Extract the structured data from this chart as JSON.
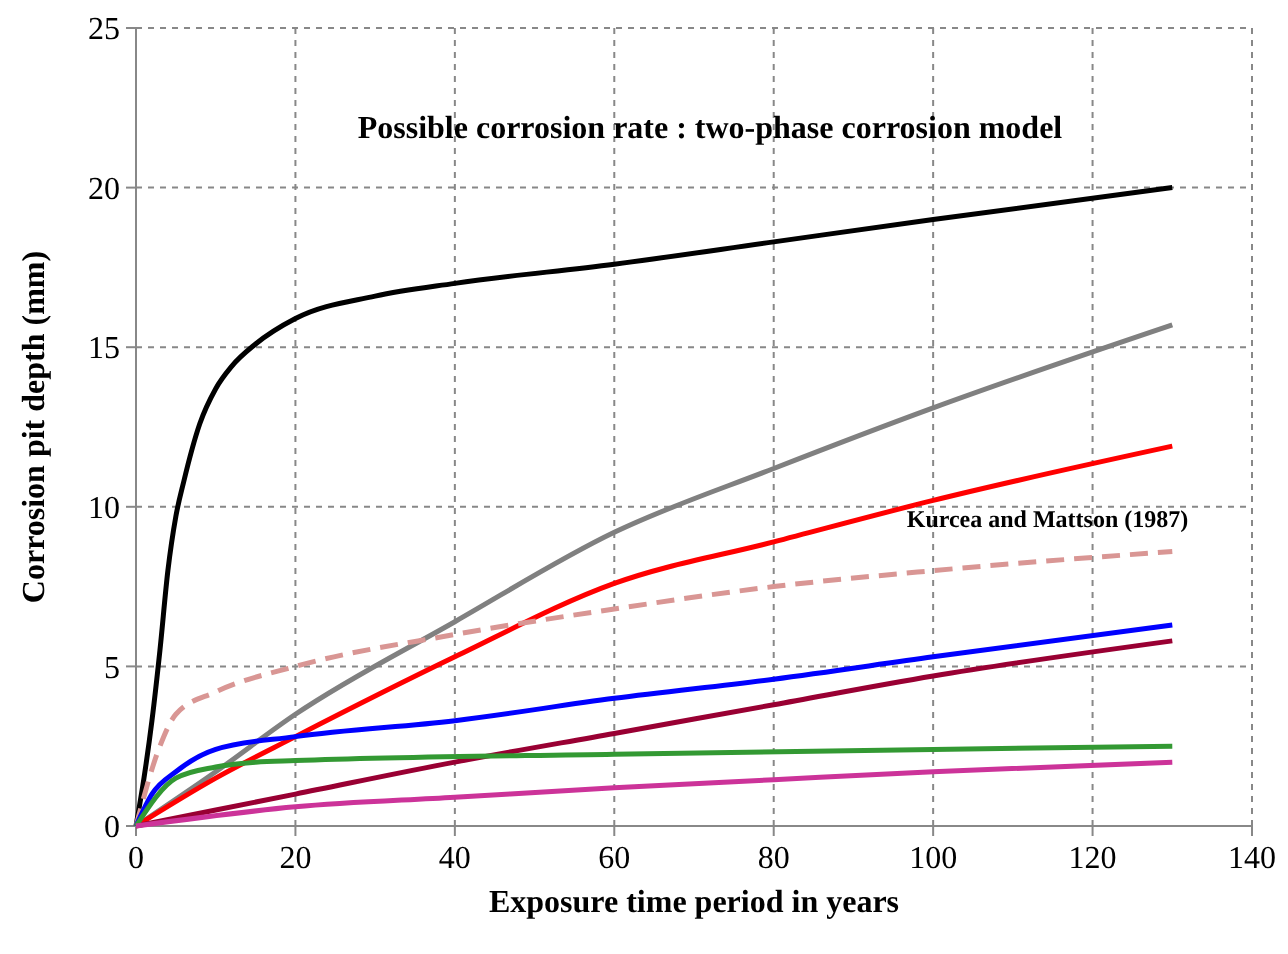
{
  "chart_data": {
    "type": "line",
    "title": "Possible corrosion rate : two-phase corrosion model",
    "xlabel": "Exposure time period in years",
    "ylabel": "Corrosion pit depth (mm)",
    "xlim": [
      0,
      140
    ],
    "xticks": [
      0,
      20,
      40,
      60,
      80,
      100,
      120,
      140
    ],
    "ylim": [
      0,
      25
    ],
    "yticks": [
      0,
      5,
      10,
      15,
      20,
      25
    ],
    "grid": true,
    "marker": "none",
    "series": [
      {
        "color": "#000000",
        "x": [
          0,
          1,
          2,
          3,
          4,
          5,
          6,
          8,
          10,
          12,
          15,
          20,
          30,
          40,
          60,
          80,
          100,
          130
        ],
        "values": [
          0,
          1.5,
          3.3,
          5.5,
          8,
          9.7,
          10.8,
          12.6,
          13.7,
          14.4,
          15.1,
          15.9,
          16.6,
          17,
          17.6,
          18.3,
          19,
          20
        ]
      },
      {
        "color": "#808080",
        "x": [
          0,
          10,
          20,
          40,
          60,
          80,
          100,
          130
        ],
        "values": [
          0,
          1.7,
          3.5,
          6.4,
          9.2,
          11.2,
          13.1,
          15.7
        ]
      },
      {
        "color": "#ff0000",
        "x": [
          0,
          10,
          20,
          40,
          60,
          80,
          100,
          130
        ],
        "values": [
          0,
          1.5,
          2.8,
          5.3,
          7.6,
          8.9,
          10.2,
          11.9
        ]
      },
      {
        "name": "Kurcea and Mattson (1987)",
        "color": "#d99694",
        "line_style": "dashed",
        "x": [
          0,
          3,
          5,
          10,
          20,
          40,
          60,
          80,
          100,
          130
        ],
        "values": [
          0,
          2.5,
          3.5,
          4.2,
          5,
          6,
          6.8,
          7.5,
          8,
          8.6
        ]
      },
      {
        "color": "#0000ff",
        "x": [
          0,
          2,
          5,
          10,
          20,
          40,
          60,
          80,
          100,
          130
        ],
        "values": [
          0,
          1,
          1.7,
          2.4,
          2.8,
          3.3,
          4,
          4.6,
          5.3,
          6.3
        ]
      },
      {
        "color": "#990033",
        "x": [
          0,
          20,
          40,
          60,
          80,
          100,
          130
        ],
        "values": [
          0,
          1,
          2,
          2.9,
          3.8,
          4.7,
          5.8
        ]
      },
      {
        "color": "#339933",
        "x": [
          0,
          5,
          10,
          15,
          20,
          60,
          100,
          130
        ],
        "values": [
          0,
          1.5,
          1.85,
          2,
          2.05,
          2.25,
          2.4,
          2.5
        ]
      },
      {
        "color": "#cc3399",
        "x": [
          0,
          20,
          40,
          60,
          80,
          100,
          130
        ],
        "values": [
          0,
          0.6,
          0.9,
          1.2,
          1.45,
          1.7,
          2
        ]
      }
    ]
  }
}
